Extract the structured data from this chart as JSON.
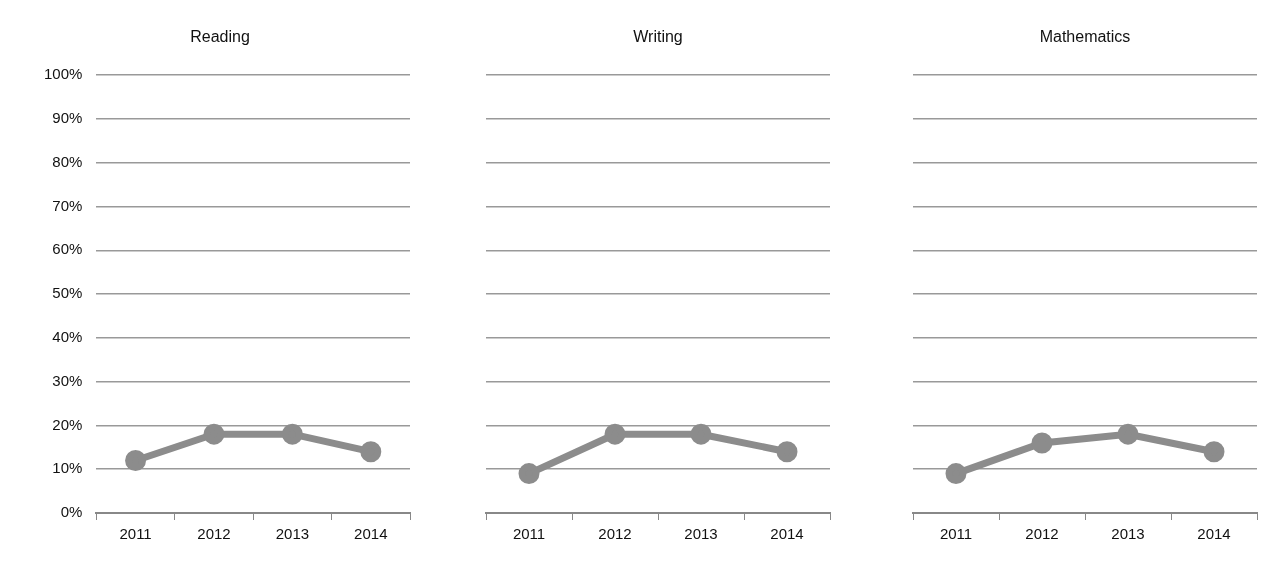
{
  "chart_data": [
    {
      "type": "line",
      "title": "Reading",
      "categories": [
        "2011",
        "2012",
        "2013",
        "2014"
      ],
      "series": [
        {
          "color": "#8c8c8c",
          "values": [
            12,
            18,
            18,
            14
          ]
        }
      ],
      "ylim": [
        0,
        100
      ],
      "yticks": [
        {
          "value": 0,
          "label": "0%"
        },
        {
          "value": 10,
          "label": "10%"
        },
        {
          "value": 20,
          "label": "20%"
        },
        {
          "value": 30,
          "label": "30%"
        },
        {
          "value": 40,
          "label": "40%"
        },
        {
          "value": 50,
          "label": "50%"
        },
        {
          "value": 60,
          "label": "60%"
        },
        {
          "value": 70,
          "label": "70%"
        },
        {
          "value": 80,
          "label": "80%"
        },
        {
          "value": 90,
          "label": "90%"
        },
        {
          "value": 100,
          "label": "100%"
        }
      ],
      "grid": "y",
      "legend": false,
      "marker": "circle",
      "line_style": "solid"
    },
    {
      "type": "line",
      "title": "Writing",
      "categories": [
        "2011",
        "2012",
        "2013",
        "2014"
      ],
      "series": [
        {
          "color": "#8c8c8c",
          "values": [
            9,
            18,
            18,
            14
          ]
        }
      ],
      "ylim": [
        0,
        100
      ],
      "yticks": [
        {
          "value": 0,
          "label": null
        },
        {
          "value": 10,
          "label": null
        },
        {
          "value": 20,
          "label": null
        },
        {
          "value": 30,
          "label": null
        },
        {
          "value": 40,
          "label": null
        },
        {
          "value": 50,
          "label": null
        },
        {
          "value": 60,
          "label": null
        },
        {
          "value": 70,
          "label": null
        },
        {
          "value": 80,
          "label": null
        },
        {
          "value": 90,
          "label": null
        },
        {
          "value": 100,
          "label": null
        }
      ],
      "grid": "y",
      "legend": false,
      "marker": "circle",
      "line_style": "solid",
      "tick_labels": "x"
    },
    {
      "type": "line",
      "title": "Mathematics",
      "categories": [
        "2011",
        "2012",
        "2013",
        "2014"
      ],
      "series": [
        {
          "color": "#8c8c8c",
          "values": [
            9,
            16,
            18,
            14
          ]
        }
      ],
      "ylim": [
        0,
        100
      ],
      "yticks": [
        {
          "value": 0,
          "label": null
        },
        {
          "value": 10,
          "label": null
        },
        {
          "value": 20,
          "label": null
        },
        {
          "value": 30,
          "label": null
        },
        {
          "value": 40,
          "label": null
        },
        {
          "value": 50,
          "label": null
        },
        {
          "value": 60,
          "label": null
        },
        {
          "value": 70,
          "label": null
        },
        {
          "value": 80,
          "label": null
        },
        {
          "value": 90,
          "label": null
        },
        {
          "value": 100,
          "label": null
        }
      ],
      "grid": "y",
      "legend": false,
      "marker": "circle",
      "line_style": "solid",
      "tick_labels": "x"
    }
  ]
}
